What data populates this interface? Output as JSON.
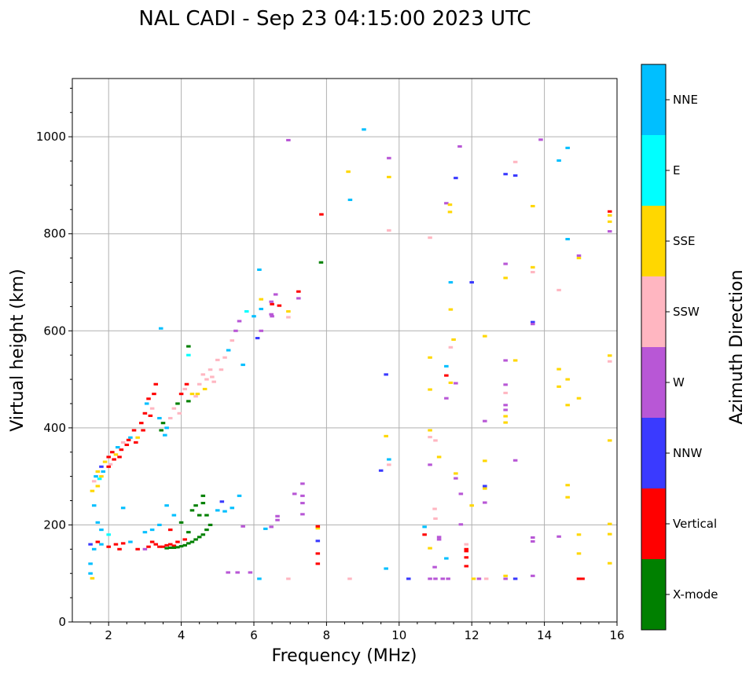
{
  "chart_data": {
    "type": "scatter",
    "title": "NAL CADI - Sep 23 04:15:00 2023 UTC",
    "xlabel": "Frequency (MHz)",
    "ylabel": "Virtual height (km)",
    "xlim": [
      1,
      16
    ],
    "ylim": [
      0,
      1120
    ],
    "xticks": [
      "2",
      "4",
      "6",
      "8",
      "10",
      "12",
      "14",
      "16"
    ],
    "yticks": [
      "0",
      "200",
      "400",
      "600",
      "800",
      "1000"
    ],
    "grid": true,
    "colorbar": {
      "label": "Azimuth Direction",
      "categories": [
        "X-mode",
        "Vertical",
        "NNW",
        "W",
        "SSW",
        "SSE",
        "E",
        "NNE"
      ],
      "colors": [
        "#008000",
        "#ff0000",
        "#3a3aff",
        "#b857d6",
        "#ffb6c1",
        "#ffd700",
        "#00ffff",
        "#00bfff"
      ]
    },
    "point_format": "[frequency_MHz, virtual_height_km, category_index]",
    "points": [
      [
        1.55,
        270,
        5
      ],
      [
        1.6,
        290,
        4
      ],
      [
        1.65,
        300,
        7
      ],
      [
        1.7,
        310,
        5
      ],
      [
        1.75,
        295,
        6
      ],
      [
        1.8,
        320,
        2
      ],
      [
        1.85,
        310,
        7
      ],
      [
        1.9,
        330,
        5
      ],
      [
        2.0,
        340,
        1
      ],
      [
        2.05,
        325,
        4
      ],
      [
        2.1,
        350,
        1
      ],
      [
        2.2,
        345,
        5
      ],
      [
        2.25,
        360,
        7
      ],
      [
        2.3,
        340,
        1
      ],
      [
        2.4,
        370,
        4
      ],
      [
        2.5,
        365,
        1
      ],
      [
        2.6,
        380,
        7
      ],
      [
        2.7,
        395,
        1
      ],
      [
        2.8,
        380,
        5
      ],
      [
        2.9,
        410,
        1
      ],
      [
        3.0,
        430,
        1
      ],
      [
        3.05,
        450,
        7
      ],
      [
        3.1,
        460,
        1
      ],
      [
        3.2,
        440,
        4
      ],
      [
        3.3,
        490,
        1
      ],
      [
        3.4,
        420,
        7
      ],
      [
        3.5,
        410,
        0
      ],
      [
        3.6,
        400,
        7
      ],
      [
        3.7,
        420,
        4
      ],
      [
        3.8,
        440,
        4
      ],
      [
        3.9,
        450,
        0
      ],
      [
        4.0,
        470,
        1
      ],
      [
        4.1,
        480,
        4
      ],
      [
        4.2,
        455,
        0
      ],
      [
        4.3,
        470,
        5
      ],
      [
        4.4,
        465,
        4
      ],
      [
        4.5,
        490,
        4
      ],
      [
        4.6,
        510,
        4
      ],
      [
        4.7,
        500,
        4
      ],
      [
        4.8,
        520,
        4
      ],
      [
        4.9,
        495,
        4
      ],
      [
        5.0,
        540,
        4
      ],
      [
        5.2,
        545,
        4
      ],
      [
        5.3,
        560,
        7
      ],
      [
        5.4,
        580,
        4
      ],
      [
        5.5,
        600,
        3
      ],
      [
        5.6,
        620,
        3
      ],
      [
        5.7,
        530,
        7
      ],
      [
        5.8,
        640,
        6
      ],
      [
        6.0,
        630,
        7
      ],
      [
        6.1,
        585,
        2
      ],
      [
        6.2,
        600,
        3
      ],
      [
        6.2,
        645,
        7
      ],
      [
        6.2,
        665,
        5
      ],
      [
        6.5,
        655,
        1
      ],
      [
        6.6,
        675,
        3
      ],
      [
        6.5,
        630,
        3
      ],
      [
        1.7,
        280,
        5
      ],
      [
        1.8,
        300,
        5
      ],
      [
        2.0,
        320,
        1
      ],
      [
        2.15,
        335,
        1
      ],
      [
        2.35,
        355,
        1
      ],
      [
        2.55,
        375,
        1
      ],
      [
        2.75,
        370,
        1
      ],
      [
        2.95,
        395,
        1
      ],
      [
        3.15,
        425,
        1
      ],
      [
        3.25,
        470,
        1
      ],
      [
        3.45,
        395,
        0
      ],
      [
        3.55,
        385,
        7
      ],
      [
        3.95,
        430,
        4
      ],
      [
        4.15,
        490,
        1
      ],
      [
        4.45,
        470,
        5
      ],
      [
        4.65,
        480,
        5
      ],
      [
        4.85,
        505,
        4
      ],
      [
        5.1,
        520,
        4
      ],
      [
        1.5,
        100,
        7
      ],
      [
        1.5,
        120,
        7
      ],
      [
        1.55,
        90,
        5
      ],
      [
        1.5,
        160,
        2
      ],
      [
        1.6,
        150,
        7
      ],
      [
        1.7,
        165,
        1
      ],
      [
        1.8,
        160,
        7
      ],
      [
        2.0,
        155,
        1
      ],
      [
        2.2,
        160,
        1
      ],
      [
        2.3,
        150,
        1
      ],
      [
        2.4,
        162,
        1
      ],
      [
        2.6,
        165,
        7
      ],
      [
        2.8,
        150,
        1
      ],
      [
        3.0,
        150,
        3
      ],
      [
        3.1,
        155,
        1
      ],
      [
        3.2,
        165,
        1
      ],
      [
        3.3,
        160,
        1
      ],
      [
        3.5,
        155,
        1
      ],
      [
        3.7,
        160,
        1
      ],
      [
        3.9,
        165,
        1
      ],
      [
        4.1,
        170,
        1
      ],
      [
        3.4,
        155,
        1
      ],
      [
        3.6,
        158,
        1
      ],
      [
        3.8,
        157,
        1
      ],
      [
        3.0,
        185,
        7
      ],
      [
        3.2,
        190,
        7
      ],
      [
        3.4,
        200,
        7
      ],
      [
        3.6,
        240,
        7
      ],
      [
        3.7,
        190,
        1
      ],
      [
        3.8,
        220,
        7
      ],
      [
        2.4,
        235,
        7
      ],
      [
        1.6,
        240,
        7
      ],
      [
        1.7,
        205,
        7
      ],
      [
        1.8,
        190,
        7
      ],
      [
        2.0,
        180,
        6
      ],
      [
        3.6,
        152,
        0
      ],
      [
        3.7,
        153,
        0
      ],
      [
        3.8,
        153,
        0
      ],
      [
        3.9,
        154,
        0
      ],
      [
        4.0,
        156,
        0
      ],
      [
        4.1,
        158,
        0
      ],
      [
        4.2,
        162,
        0
      ],
      [
        4.3,
        165,
        0
      ],
      [
        4.4,
        170,
        0
      ],
      [
        4.5,
        175,
        0
      ],
      [
        4.6,
        180,
        0
      ],
      [
        4.7,
        190,
        0
      ],
      [
        4.8,
        200,
        0
      ],
      [
        4.5,
        220,
        0
      ],
      [
        4.6,
        245,
        0
      ],
      [
        4.6,
        260,
        0
      ],
      [
        4.3,
        230,
        0
      ],
      [
        4.4,
        240,
        0
      ],
      [
        4.7,
        220,
        0
      ],
      [
        4.2,
        185,
        0
      ],
      [
        4.0,
        205,
        0
      ],
      [
        9.03,
        1015,
        7
      ],
      [
        6.95,
        993,
        3
      ],
      [
        8.6,
        928,
        5
      ],
      [
        8.65,
        870,
        7
      ],
      [
        9.72,
        956,
        3
      ],
      [
        9.72,
        917,
        5
      ],
      [
        11.67,
        980,
        3
      ],
      [
        11.56,
        915,
        2
      ],
      [
        12.93,
        923,
        2
      ],
      [
        13.2,
        948,
        4
      ],
      [
        13.2,
        920,
        2
      ],
      [
        13.9,
        994,
        3
      ],
      [
        14.64,
        977,
        7
      ],
      [
        14.4,
        951,
        7
      ],
      [
        11.3,
        863,
        3
      ],
      [
        11.4,
        845,
        5
      ],
      [
        11.4,
        860,
        5
      ],
      [
        7.86,
        840,
        1
      ],
      [
        7.85,
        741,
        0
      ],
      [
        9.72,
        807,
        4
      ],
      [
        10.85,
        792,
        4
      ],
      [
        13.68,
        857,
        5
      ],
      [
        15.8,
        846,
        1
      ],
      [
        15.8,
        838,
        5
      ],
      [
        15.8,
        825,
        5
      ],
      [
        15.8,
        805,
        3
      ],
      [
        14.64,
        789,
        7
      ],
      [
        14.95,
        755,
        3
      ],
      [
        14.95,
        750,
        5
      ],
      [
        12.93,
        738,
        3
      ],
      [
        13.68,
        731,
        5
      ],
      [
        13.68,
        721,
        4
      ],
      [
        12.93,
        709,
        5
      ],
      [
        11.42,
        700,
        7
      ],
      [
        12.0,
        700,
        2
      ],
      [
        14.4,
        684,
        4
      ],
      [
        11.42,
        644,
        5
      ],
      [
        13.68,
        618,
        2
      ],
      [
        13.68,
        614,
        3
      ],
      [
        12.36,
        589,
        5
      ],
      [
        11.5,
        582,
        5
      ],
      [
        11.42,
        566,
        4
      ],
      [
        10.85,
        545,
        5
      ],
      [
        12.93,
        539,
        3
      ],
      [
        13.2,
        539,
        5
      ],
      [
        15.8,
        549,
        5
      ],
      [
        15.8,
        537,
        4
      ],
      [
        11.3,
        527,
        7
      ],
      [
        14.4,
        521,
        5
      ],
      [
        11.3,
        508,
        1
      ],
      [
        9.64,
        510,
        2
      ],
      [
        11.56,
        492,
        3
      ],
      [
        11.42,
        493,
        5
      ],
      [
        14.64,
        500,
        5
      ],
      [
        14.4,
        485,
        5
      ],
      [
        12.93,
        489,
        3
      ],
      [
        10.85,
        479,
        5
      ],
      [
        12.93,
        472,
        4
      ],
      [
        14.95,
        461,
        5
      ],
      [
        11.3,
        461,
        3
      ],
      [
        14.64,
        447,
        5
      ],
      [
        12.93,
        447,
        3
      ],
      [
        12.93,
        437,
        3
      ],
      [
        12.93,
        424,
        5
      ],
      [
        12.93,
        411,
        5
      ],
      [
        12.36,
        414,
        3
      ],
      [
        10.85,
        395,
        5
      ],
      [
        10.85,
        381,
        4
      ],
      [
        11.0,
        374,
        4
      ],
      [
        9.64,
        383,
        5
      ],
      [
        15.8,
        374,
        5
      ],
      [
        11.1,
        340,
        5
      ],
      [
        9.72,
        335,
        7
      ],
      [
        12.36,
        332,
        5
      ],
      [
        13.2,
        333,
        3
      ],
      [
        9.72,
        324,
        4
      ],
      [
        10.85,
        324,
        3
      ],
      [
        9.5,
        312,
        2
      ],
      [
        11.56,
        306,
        5
      ],
      [
        11.56,
        296,
        3
      ],
      [
        7.34,
        285,
        3
      ],
      [
        7.34,
        260,
        3
      ],
      [
        7.12,
        264,
        3
      ],
      [
        11.7,
        264,
        3
      ],
      [
        12.36,
        280,
        2
      ],
      [
        12.36,
        275,
        5
      ],
      [
        14.64,
        282,
        5
      ],
      [
        14.64,
        257,
        5
      ],
      [
        12.36,
        246,
        3
      ],
      [
        12.0,
        240,
        5
      ],
      [
        7.34,
        245,
        3
      ],
      [
        7.34,
        222,
        3
      ],
      [
        10.98,
        233,
        4
      ],
      [
        11.0,
        213,
        4
      ],
      [
        15.8,
        202,
        5
      ],
      [
        15.8,
        181,
        5
      ],
      [
        11.7,
        201,
        3
      ],
      [
        10.7,
        196,
        7
      ],
      [
        7.76,
        193,
        5
      ],
      [
        7.76,
        197,
        1
      ],
      [
        10.7,
        180,
        1
      ],
      [
        11.1,
        175,
        3
      ],
      [
        11.1,
        170,
        3
      ],
      [
        14.95,
        180,
        5
      ],
      [
        14.4,
        176,
        3
      ],
      [
        13.68,
        174,
        3
      ],
      [
        13.68,
        166,
        3
      ],
      [
        7.76,
        167,
        2
      ],
      [
        11.85,
        160,
        4
      ],
      [
        11.85,
        146,
        1
      ],
      [
        11.85,
        150,
        1
      ],
      [
        7.76,
        141,
        1
      ],
      [
        10.85,
        152,
        5
      ],
      [
        14.95,
        141,
        5
      ],
      [
        11.3,
        131,
        7
      ],
      [
        11.85,
        133,
        1
      ],
      [
        7.76,
        120,
        1
      ],
      [
        15.8,
        121,
        5
      ],
      [
        11.85,
        115,
        1
      ],
      [
        10.98,
        113,
        3
      ],
      [
        9.64,
        110,
        7
      ],
      [
        5.29,
        102,
        3
      ],
      [
        5.55,
        102,
        3
      ],
      [
        5.9,
        102,
        3
      ],
      [
        6.15,
        89,
        7
      ],
      [
        6.95,
        89,
        4
      ],
      [
        8.64,
        89,
        4
      ],
      [
        10.26,
        89,
        2
      ],
      [
        10.85,
        89,
        3
      ],
      [
        11.0,
        89,
        3
      ],
      [
        11.2,
        89,
        3
      ],
      [
        11.35,
        89,
        3
      ],
      [
        12.05,
        89,
        5
      ],
      [
        12.2,
        89,
        3
      ],
      [
        12.4,
        89,
        4
      ],
      [
        12.93,
        95,
        5
      ],
      [
        12.93,
        89,
        3
      ],
      [
        13.2,
        89,
        2
      ],
      [
        13.68,
        95,
        3
      ],
      [
        14.95,
        89,
        1
      ],
      [
        15.05,
        89,
        1
      ],
      [
        6.48,
        196,
        3
      ],
      [
        6.65,
        210,
        3
      ],
      [
        6.65,
        218,
        3
      ],
      [
        6.32,
        192,
        7
      ],
      [
        5.4,
        235,
        7
      ],
      [
        5.12,
        248,
        2
      ],
      [
        5.6,
        260,
        7
      ],
      [
        5.7,
        197,
        3
      ],
      [
        5.0,
        230,
        7
      ],
      [
        5.2,
        228,
        7
      ],
      [
        6.15,
        726,
        7
      ],
      [
        6.48,
        660,
        3
      ],
      [
        7.23,
        681,
        1
      ],
      [
        7.23,
        667,
        3
      ],
      [
        6.95,
        640,
        5
      ],
      [
        6.95,
        628,
        4
      ],
      [
        6.48,
        634,
        3
      ],
      [
        6.7,
        652,
        1
      ],
      [
        4.2,
        568,
        0
      ],
      [
        4.2,
        550,
        6
      ],
      [
        3.44,
        605,
        7
      ]
    ]
  }
}
